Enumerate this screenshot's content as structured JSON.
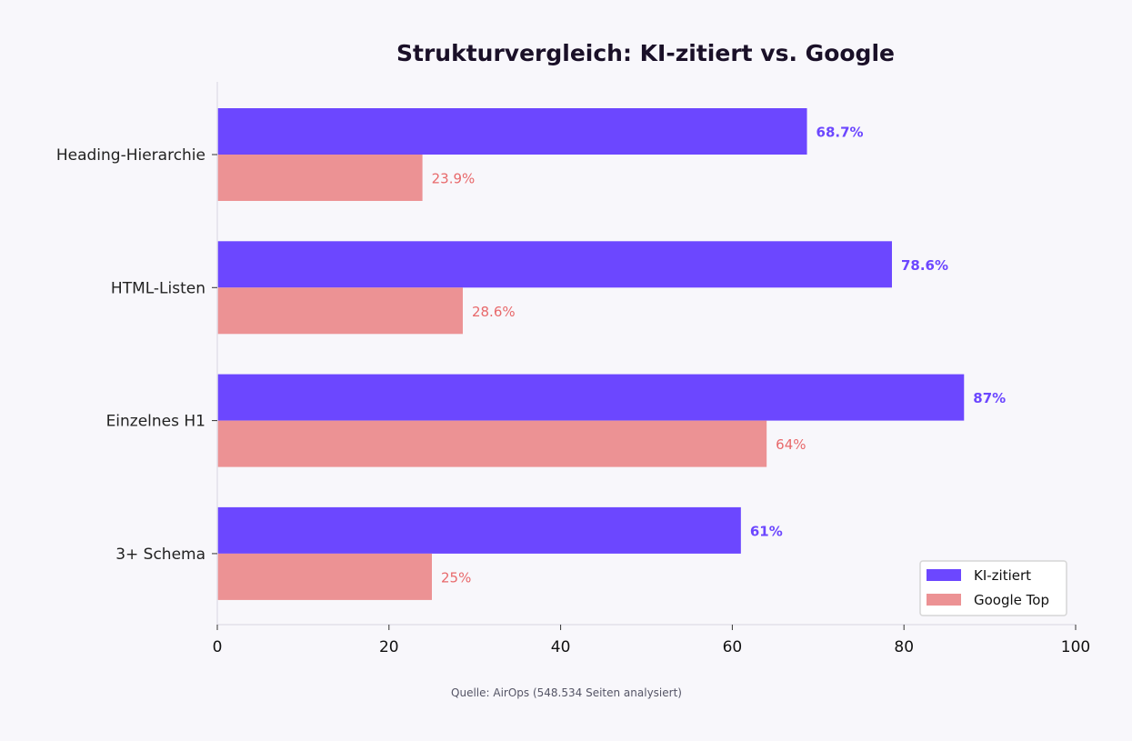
{
  "chart_data": {
    "type": "bar",
    "orientation": "horizontal",
    "title": "Strukturvergleich: KI-zitiert vs. Google",
    "categories": [
      "Heading-Hierarchie",
      "HTML-Listen",
      "Einzelnes H1",
      "3+ Schema"
    ],
    "series": [
      {
        "name": "KI-zitiert",
        "values": [
          68.7,
          78.6,
          87,
          61
        ],
        "labels": [
          "68.7%",
          "78.6%",
          "87%",
          "61%"
        ],
        "color": "#6c47ff"
      },
      {
        "name": "Google Top",
        "values": [
          23.9,
          28.6,
          64,
          25
        ],
        "labels": [
          "23.9%",
          "28.6%",
          "64%",
          "25%"
        ],
        "color": "#ec9294"
      }
    ],
    "xlim": [
      0,
      100
    ],
    "xticks": [
      "0",
      "20",
      "40",
      "60",
      "80",
      "100"
    ],
    "xlabel": "",
    "ylabel": "",
    "grid": false,
    "legend": "bottom-right",
    "source": "Quelle: AirOps (548.534 Seiten analysiert)"
  }
}
